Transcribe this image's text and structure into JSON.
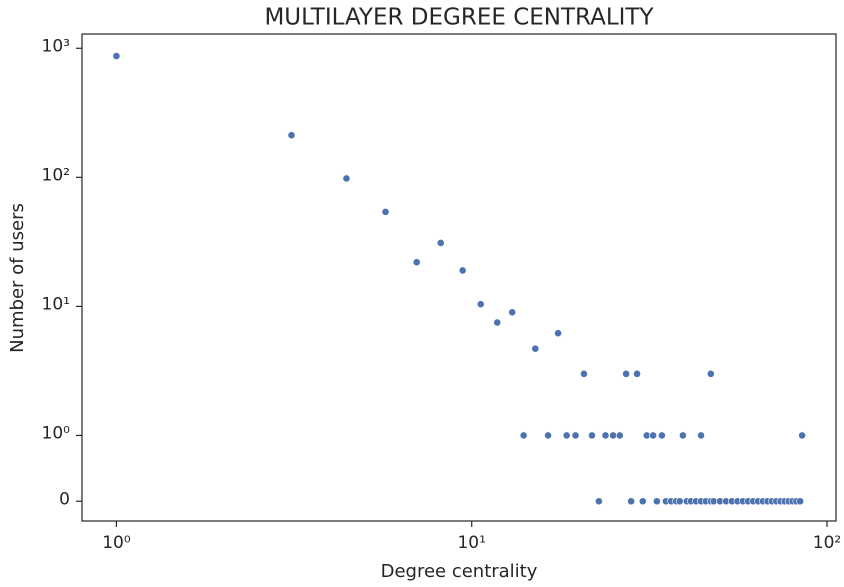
{
  "chart_data": {
    "type": "scatter",
    "title": "MULTILAYER DEGREE CENTRALITY",
    "xlabel": "Degree centrality",
    "ylabel": "Number of users",
    "xscale": "log",
    "yscale": "symlog",
    "linthresh": 1,
    "linscale": 0.51,
    "xlim": [
      0.8,
      106
    ],
    "ylim": [
      -0.3,
      1290
    ],
    "xticks": [
      {
        "value": 1,
        "label": "10⁰"
      },
      {
        "value": 10,
        "label": "10¹"
      },
      {
        "value": 100,
        "label": "10²"
      }
    ],
    "yticks": [
      0,
      {
        "value": 1,
        "label": "10⁰"
      },
      {
        "value": 10,
        "label": "10¹"
      },
      {
        "value": 100,
        "label": "10²"
      },
      {
        "value": 1000,
        "label": "10³"
      }
    ],
    "grid": false,
    "series": [
      {
        "name": "users",
        "color": "#4c72b0",
        "x": [
          1,
          3.11,
          4.44,
          5.72,
          7.0,
          8.18,
          9.43,
          10.6,
          11.8,
          13.0,
          15.1,
          17.5,
          20.7,
          27.2,
          29.2,
          47.1,
          14.0,
          16.4,
          18.5,
          19.6,
          21.8,
          23.8,
          25.0,
          26.1,
          31.1,
          32.4,
          34.3,
          39.3,
          44.2,
          85.1,
          22.8,
          28.1,
          30.3,
          33.2,
          35.2,
          36.4,
          37.6,
          38.5,
          40.3,
          41.4,
          42.8,
          44.2,
          45.6,
          47.1,
          48,
          50,
          52,
          54,
          56,
          58,
          60,
          62,
          64,
          66,
          68,
          70,
          72,
          74,
          76,
          78,
          80,
          82,
          84
        ],
        "values": [
          870,
          212,
          98,
          54,
          22,
          31,
          19,
          10.4,
          7.5,
          9.0,
          4.7,
          6.2,
          3,
          3,
          3,
          3,
          1,
          1,
          1,
          1,
          1,
          1,
          1,
          1,
          1,
          1,
          1,
          1,
          1,
          1,
          0,
          0,
          0,
          0,
          0,
          0,
          0,
          0,
          0,
          0,
          0,
          0,
          0,
          0,
          0,
          0,
          0,
          0,
          0,
          0,
          0,
          0,
          0,
          0,
          0,
          0,
          0,
          0,
          0,
          0,
          0,
          0,
          0
        ]
      }
    ]
  }
}
